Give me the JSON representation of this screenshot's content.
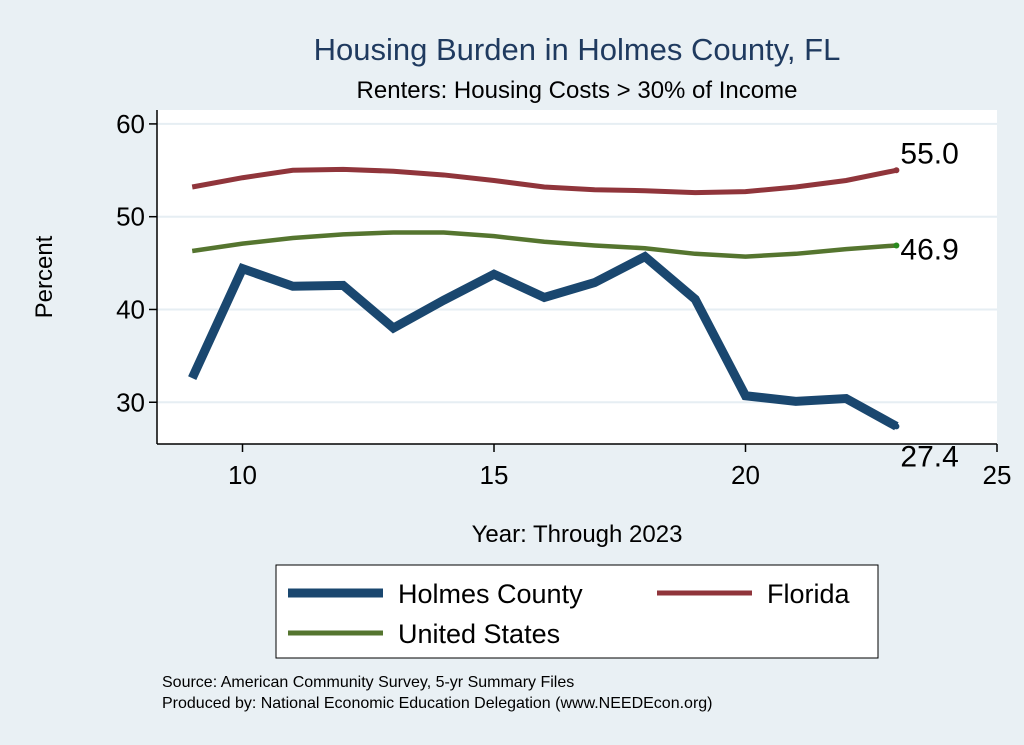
{
  "chart_data": {
    "type": "line",
    "title": "Housing Burden in Holmes County, FL",
    "subtitle": "Renters: Housing Costs > 30% of Income",
    "xlabel": "Year: Through 2023",
    "ylabel": "Percent",
    "x": [
      9,
      10,
      11,
      12,
      13,
      14,
      15,
      16,
      17,
      18,
      19,
      20,
      21,
      22,
      23
    ],
    "xlim": [
      8.3,
      25
    ],
    "ylim": [
      25.5,
      61.5
    ],
    "xticks": [
      10,
      15,
      20,
      25
    ],
    "yticks": [
      30,
      40,
      50,
      60
    ],
    "grid": true,
    "legend_position": "bottom",
    "series": [
      {
        "name": "Holmes County",
        "color": "#1a476f",
        "values": [
          32.6,
          44.4,
          42.5,
          42.6,
          38.0,
          41.0,
          43.8,
          41.3,
          42.9,
          45.7,
          41.1,
          30.7,
          30.1,
          30.4,
          27.4
        ],
        "end_label": "27.4"
      },
      {
        "name": "Florida",
        "color": "#90353b",
        "values": [
          53.2,
          54.2,
          55.0,
          55.1,
          54.9,
          54.5,
          53.9,
          53.2,
          52.9,
          52.8,
          52.6,
          52.7,
          53.2,
          53.9,
          55.0
        ],
        "end_label": "55.0"
      },
      {
        "name": "United States",
        "color": "#55752f",
        "values": [
          46.3,
          47.1,
          47.7,
          48.1,
          48.3,
          48.3,
          47.9,
          47.3,
          46.9,
          46.6,
          46.0,
          45.7,
          46.0,
          46.5,
          46.9
        ],
        "end_label": "46.9"
      }
    ],
    "notes": [
      "Source: American Community Survey, 5-yr Summary Files",
      "Produced by: National Economic Education Delegation (www.NEEDEcon.org)"
    ]
  }
}
